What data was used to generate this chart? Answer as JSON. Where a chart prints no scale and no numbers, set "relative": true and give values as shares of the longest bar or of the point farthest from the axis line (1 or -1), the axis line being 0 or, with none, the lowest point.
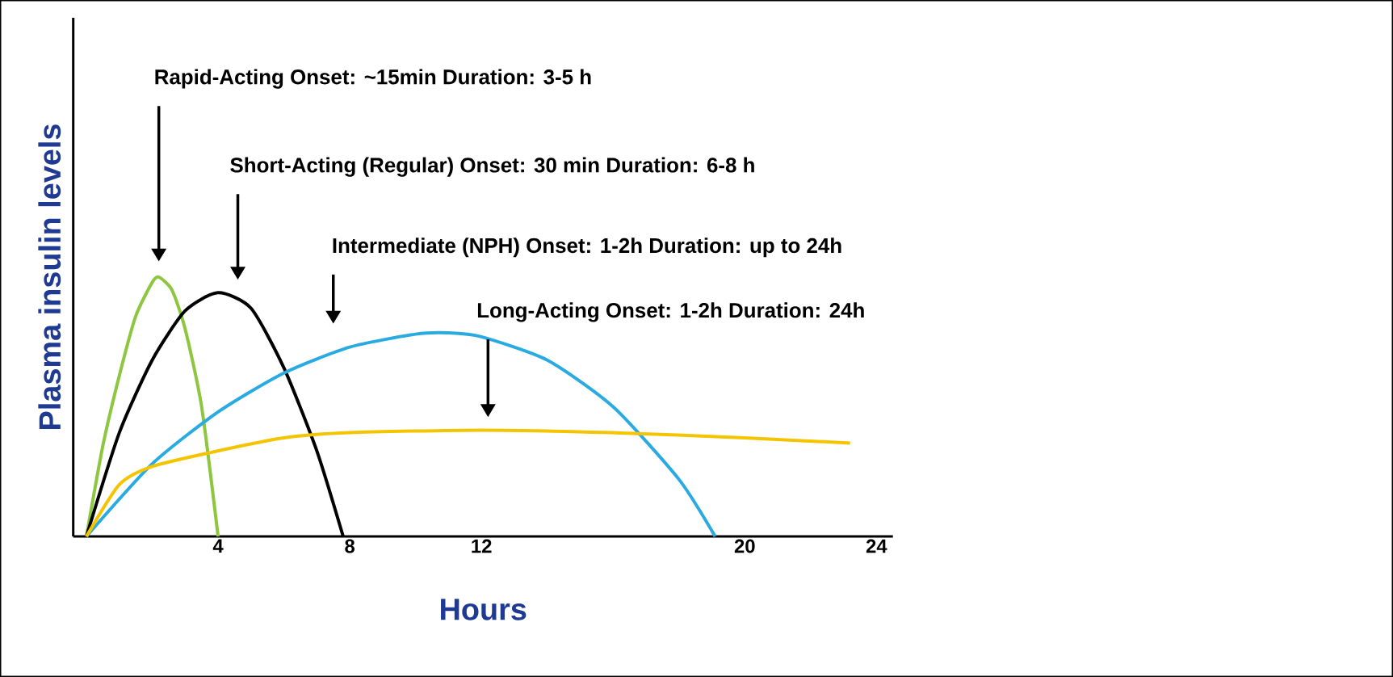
{
  "chart_data": {
    "type": "line",
    "relative": true,
    "xlabel": "Hours",
    "ylabel": "Plasma insulin levels",
    "xlim": [
      -0.4,
      24.5
    ],
    "xticks": [
      4,
      8,
      12,
      20,
      24
    ],
    "grid": false,
    "marker": "none",
    "line_style": "solid",
    "series": [
      {
        "color": "#8dc63f",
        "x": [
          0,
          0.5,
          1,
          1.5,
          2,
          2.2,
          2.6,
          3,
          3.5,
          4
        ],
        "values": [
          0,
          0.35,
          0.62,
          0.85,
          0.98,
          1.0,
          0.95,
          0.8,
          0.5,
          0
        ]
      },
      {
        "color": "#000000",
        "x": [
          0,
          1,
          2,
          3,
          4,
          5,
          6,
          7,
          7.8
        ],
        "values": [
          0,
          0.4,
          0.68,
          0.87,
          0.94,
          0.88,
          0.65,
          0.33,
          0
        ]
      },
      {
        "color": "#29abe2",
        "x": [
          0,
          2,
          4,
          6,
          8,
          10,
          11,
          12,
          14,
          16,
          18,
          19.1
        ],
        "values": [
          0,
          0.28,
          0.48,
          0.63,
          0.73,
          0.78,
          0.785,
          0.77,
          0.68,
          0.5,
          0.22,
          0
        ]
      },
      {
        "color": "#f5c400",
        "x": [
          0,
          1,
          2,
          4,
          6,
          8,
          12,
          16,
          20,
          23.2
        ],
        "values": [
          0,
          0.2,
          0.27,
          0.33,
          0.38,
          0.4,
          0.41,
          0.4,
          0.38,
          0.36
        ]
      }
    ],
    "annotations": [
      "Rapid-Acting Onset: ~15min Duration: 3-5 h",
      "Short-Acting (Regular)  Onset: 30 min Duration: 6-8 h",
      "Intermediate (NPH)  Onset: 1-2h Duration: up to 24h",
      "Long-Acting Onset: 1-2h Duration: 24h"
    ]
  }
}
